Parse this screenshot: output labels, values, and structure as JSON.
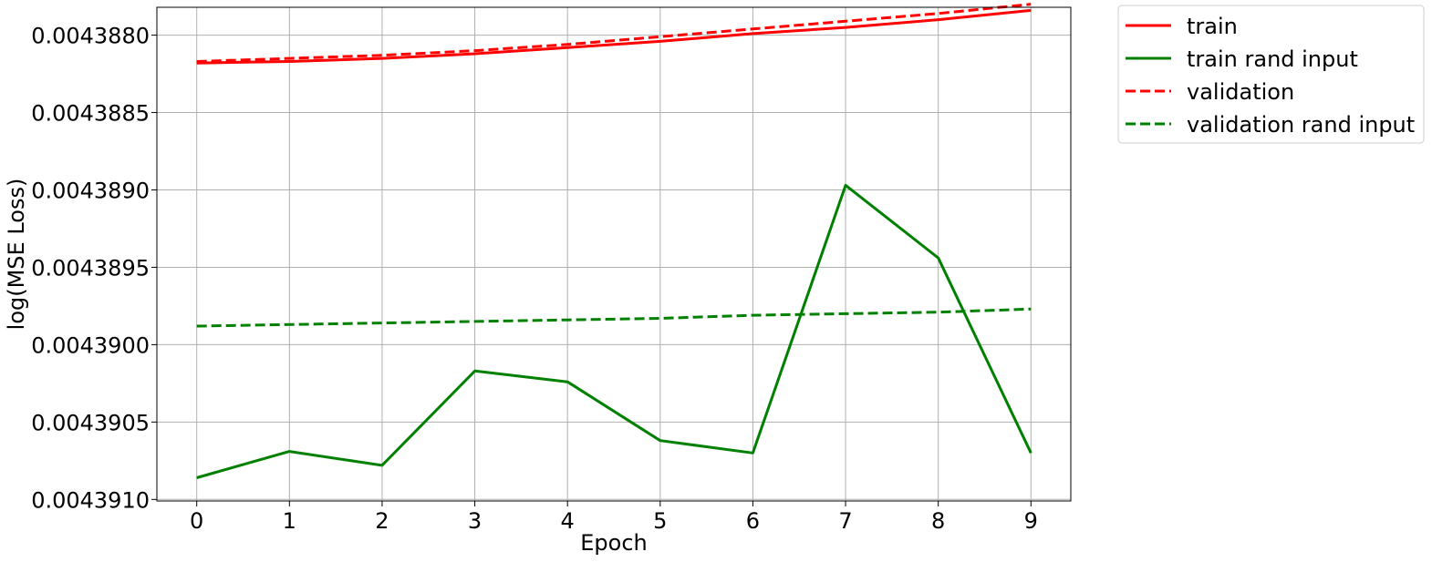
{
  "chart_data": {
    "type": "line",
    "title": "",
    "xlabel": "Epoch",
    "ylabel": "log(MSE Loss)",
    "x": [
      0,
      1,
      2,
      3,
      4,
      5,
      6,
      7,
      8,
      9
    ],
    "x_ticks": [
      "0",
      "1",
      "2",
      "3",
      "4",
      "5",
      "6",
      "7",
      "8",
      "9"
    ],
    "y_ticks": [
      0.004388,
      0.0043885,
      0.004389,
      0.0043895,
      0.00439,
      0.0043905,
      0.004391
    ],
    "y_tick_labels": [
      "0.0043880",
      "0.0043885",
      "0.0043890",
      "0.0043895",
      "0.0043900",
      "0.0043905",
      "0.0043910"
    ],
    "y_inverted": true,
    "ylim": [
      0.00438782,
      0.00439101
    ],
    "xlim": [
      -0.43,
      9.43
    ],
    "grid": true,
    "legend_position": "outside-top-right",
    "series": [
      {
        "name": "train",
        "color": "#ff0000",
        "dash": "solid",
        "values": [
          0.00438818,
          0.00438817,
          0.00438815,
          0.00438812,
          0.00438808,
          0.00438804,
          0.00438799,
          0.00438795,
          0.0043879,
          0.00438784
        ]
      },
      {
        "name": "train rand input",
        "color": "#008000",
        "dash": "solid",
        "values": [
          0.00439086,
          0.00439069,
          0.00439078,
          0.00439017,
          0.00439024,
          0.00439062,
          0.0043907,
          0.00438897,
          0.00438944,
          0.0043907
        ]
      },
      {
        "name": "validation",
        "color": "#ff0000",
        "dash": "dashed",
        "values": [
          0.00438817,
          0.00438815,
          0.00438813,
          0.0043881,
          0.00438806,
          0.00438801,
          0.00438796,
          0.00438791,
          0.00438786,
          0.0043878
        ]
      },
      {
        "name": "validation rand input",
        "color": "#008000",
        "dash": "dashed",
        "values": [
          0.00438988,
          0.00438987,
          0.00438986,
          0.00438985,
          0.00438984,
          0.00438983,
          0.00438981,
          0.0043898,
          0.00438979,
          0.00438977
        ]
      }
    ]
  }
}
